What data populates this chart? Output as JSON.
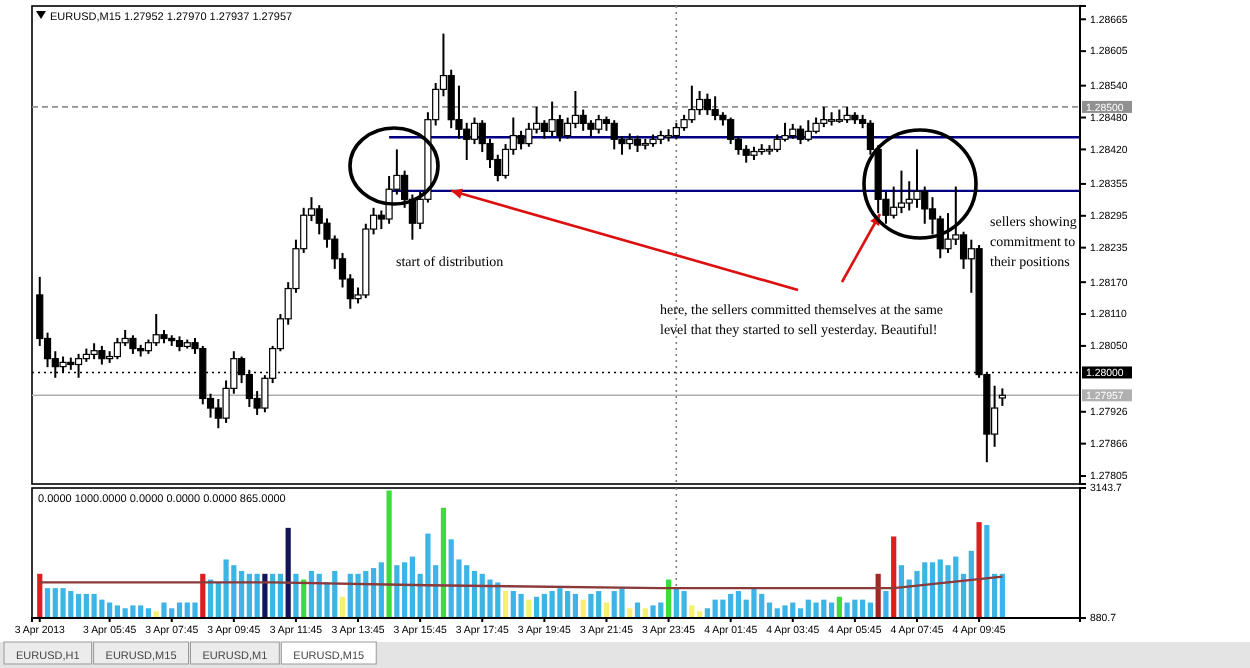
{
  "chart_data": [
    {
      "type": "candlestick",
      "title": "EURUSD,M15 1.27952 1.27970 1.27937 1.27957",
      "color": "#000000",
      "x": [
        "2013-04-03T03:30",
        "2013-04-03T03:45",
        "2013-04-03T04:00",
        "2013-04-03T04:15",
        "2013-04-03T04:30",
        "2013-04-03T04:45",
        "2013-04-03T05:00",
        "2013-04-03T05:15",
        "2013-04-03T05:30",
        "2013-04-03T05:45",
        "2013-04-03T06:00",
        "2013-04-03T06:15",
        "2013-04-03T06:30",
        "2013-04-03T06:45",
        "2013-04-03T07:00",
        "2013-04-03T07:15",
        "2013-04-03T07:30",
        "2013-04-03T07:45",
        "2013-04-03T08:00",
        "2013-04-03T08:15",
        "2013-04-03T08:30",
        "2013-04-03T08:45",
        "2013-04-03T09:00",
        "2013-04-03T09:15",
        "2013-04-03T09:30",
        "2013-04-03T09:45",
        "2013-04-03T10:00",
        "2013-04-03T10:15",
        "2013-04-03T10:30",
        "2013-04-03T10:45",
        "2013-04-03T11:00",
        "2013-04-03T11:15",
        "2013-04-03T11:30",
        "2013-04-03T11:45",
        "2013-04-03T12:00",
        "2013-04-03T12:15",
        "2013-04-03T12:30",
        "2013-04-03T12:45",
        "2013-04-03T13:00",
        "2013-04-03T13:15",
        "2013-04-03T13:30",
        "2013-04-03T13:45",
        "2013-04-03T14:00",
        "2013-04-03T14:15",
        "2013-04-03T14:30",
        "2013-04-03T14:45",
        "2013-04-03T15:00",
        "2013-04-03T15:15",
        "2013-04-03T15:30",
        "2013-04-03T15:45",
        "2013-04-03T16:00",
        "2013-04-03T16:15",
        "2013-04-03T16:30",
        "2013-04-03T16:45",
        "2013-04-03T17:00",
        "2013-04-03T17:15",
        "2013-04-03T17:30",
        "2013-04-03T17:45",
        "2013-04-03T18:00",
        "2013-04-03T18:15",
        "2013-04-03T18:30",
        "2013-04-03T18:45",
        "2013-04-03T19:00",
        "2013-04-03T19:15",
        "2013-04-03T19:30",
        "2013-04-03T19:45",
        "2013-04-03T20:00",
        "2013-04-03T20:15",
        "2013-04-03T20:30",
        "2013-04-03T20:45",
        "2013-04-03T21:00",
        "2013-04-03T21:15",
        "2013-04-03T21:30",
        "2013-04-03T21:45",
        "2013-04-03T22:00",
        "2013-04-03T22:15",
        "2013-04-03T22:30",
        "2013-04-03T22:45",
        "2013-04-03T23:00",
        "2013-04-03T23:15",
        "2013-04-03T23:30",
        "2013-04-03T23:45",
        "2013-04-04T00:00",
        "2013-04-04T00:15",
        "2013-04-04T00:30",
        "2013-04-04T00:45",
        "2013-04-04T01:00",
        "2013-04-04T01:15",
        "2013-04-04T01:30",
        "2013-04-04T01:45",
        "2013-04-04T02:00",
        "2013-04-04T02:15",
        "2013-04-04T02:30",
        "2013-04-04T02:45",
        "2013-04-04T03:00",
        "2013-04-04T03:15",
        "2013-04-04T03:30",
        "2013-04-04T03:45",
        "2013-04-04T04:00",
        "2013-04-04T04:15",
        "2013-04-04T04:30",
        "2013-04-04T04:45",
        "2013-04-04T05:00",
        "2013-04-04T05:15",
        "2013-04-04T05:30",
        "2013-04-04T05:45",
        "2013-04-04T06:00",
        "2013-04-04T06:15",
        "2013-04-04T06:30",
        "2013-04-04T06:45",
        "2013-04-04T07:00",
        "2013-04-04T07:15",
        "2013-04-04T07:30",
        "2013-04-04T07:45",
        "2013-04-04T08:00",
        "2013-04-04T08:15",
        "2013-04-04T08:30",
        "2013-04-04T08:45",
        "2013-04-04T09:00",
        "2013-04-04T09:15",
        "2013-04-04T09:30",
        "2013-04-04T09:45",
        "2013-04-04T10:00",
        "2013-04-04T10:15",
        "2013-04-04T10:30"
      ],
      "ohlc": [
        [
          1.28146,
          1.2818,
          1.2805,
          1.28064
        ],
        [
          1.28064,
          1.28075,
          1.2801,
          1.28026
        ],
        [
          1.28026,
          1.2804,
          1.2799,
          1.28011
        ],
        [
          1.28011,
          1.2803,
          1.28,
          1.28019
        ],
        [
          1.28019,
          1.28028,
          1.28005,
          1.28015
        ],
        [
          1.28015,
          1.28035,
          1.2799,
          1.28026
        ],
        [
          1.28026,
          1.28045,
          1.2802,
          1.28034
        ],
        [
          1.28034,
          1.28055,
          1.28025,
          1.28041
        ],
        [
          1.28041,
          1.2805,
          1.28015,
          1.28026
        ],
        [
          1.28026,
          1.2804,
          1.28018,
          1.2803
        ],
        [
          1.2803,
          1.28065,
          1.28025,
          1.28056
        ],
        [
          1.28056,
          1.2808,
          1.2805,
          1.28064
        ],
        [
          1.28064,
          1.2807,
          1.28035,
          1.28045
        ],
        [
          1.28045,
          1.28052,
          1.2803,
          1.28041
        ],
        [
          1.28041,
          1.28062,
          1.28035,
          1.28056
        ],
        [
          1.28056,
          1.2811,
          1.2805,
          1.28071
        ],
        [
          1.28071,
          1.2808,
          1.28055,
          1.28064
        ],
        [
          1.28064,
          1.2807,
          1.2805,
          1.2806
        ],
        [
          1.2806,
          1.28068,
          1.2804,
          1.28049
        ],
        [
          1.28049,
          1.28062,
          1.28045,
          1.28056
        ],
        [
          1.28056,
          1.28065,
          1.28035,
          1.28045
        ],
        [
          1.28045,
          1.2805,
          1.2794,
          1.27951
        ],
        [
          1.27951,
          1.2796,
          1.27915,
          1.27933
        ],
        [
          1.27933,
          1.2795,
          1.27895,
          1.27914
        ],
        [
          1.27914,
          1.27985,
          1.27905,
          1.2797
        ],
        [
          1.2797,
          1.2804,
          1.2796,
          1.28026
        ],
        [
          1.28026,
          1.2803,
          1.2798,
          1.27996
        ],
        [
          1.27996,
          1.28005,
          1.27935,
          1.27951
        ],
        [
          1.27951,
          1.27965,
          1.2792,
          1.27933
        ],
        [
          1.27933,
          1.27995,
          1.27925,
          1.27989
        ],
        [
          1.27989,
          1.2805,
          1.2798,
          1.28045
        ],
        [
          1.28045,
          1.2811,
          1.2804,
          1.28101
        ],
        [
          1.28101,
          1.2817,
          1.2809,
          1.28158
        ],
        [
          1.28158,
          1.2825,
          1.2815,
          1.28233
        ],
        [
          1.28233,
          1.2831,
          1.28225,
          1.28296
        ],
        [
          1.28296,
          1.2833,
          1.28285,
          1.28308
        ],
        [
          1.28308,
          1.28315,
          1.2826,
          1.28281
        ],
        [
          1.28281,
          1.2829,
          1.28235,
          1.28251
        ],
        [
          1.28251,
          1.28258,
          1.28195,
          1.28214
        ],
        [
          1.28214,
          1.28225,
          1.2816,
          1.28176
        ],
        [
          1.28176,
          1.28185,
          1.2812,
          1.28139
        ],
        [
          1.28139,
          1.2816,
          1.2813,
          1.28146
        ],
        [
          1.28146,
          1.2828,
          1.2814,
          1.2827
        ],
        [
          1.2827,
          1.2831,
          1.2826,
          1.28296
        ],
        [
          1.28296,
          1.28305,
          1.2827,
          1.28289
        ],
        [
          1.28289,
          1.2837,
          1.2828,
          1.28345
        ],
        [
          1.28345,
          1.2842,
          1.28335,
          1.28371
        ],
        [
          1.28371,
          1.2838,
          1.2831,
          1.28326
        ],
        [
          1.28326,
          1.28335,
          1.2825,
          1.28281
        ],
        [
          1.28281,
          1.2834,
          1.2827,
          1.28326
        ],
        [
          1.28326,
          1.2849,
          1.2832,
          1.28476
        ],
        [
          1.28476,
          1.28545,
          1.28465,
          1.28533
        ],
        [
          1.28533,
          1.28638,
          1.2852,
          1.28559
        ],
        [
          1.28559,
          1.2857,
          1.2846,
          1.28476
        ],
        [
          1.28476,
          1.2854,
          1.2844,
          1.28458
        ],
        [
          1.28458,
          1.2847,
          1.284,
          1.28439
        ],
        [
          1.28439,
          1.2848,
          1.2843,
          1.28469
        ],
        [
          1.28469,
          1.28475,
          1.28415,
          1.28431
        ],
        [
          1.28431,
          1.2844,
          1.28385,
          1.28401
        ],
        [
          1.28401,
          1.2841,
          1.2836,
          1.28371
        ],
        [
          1.28371,
          1.2843,
          1.28365,
          1.2842
        ],
        [
          1.2842,
          1.2848,
          1.2841,
          1.28446
        ],
        [
          1.28446,
          1.28455,
          1.2842,
          1.28431
        ],
        [
          1.28431,
          1.2847,
          1.28425,
          1.28458
        ],
        [
          1.28458,
          1.285,
          1.2845,
          1.28469
        ],
        [
          1.28469,
          1.28475,
          1.2844,
          1.28454
        ],
        [
          1.28454,
          1.2851,
          1.28445,
          1.28476
        ],
        [
          1.28476,
          1.28485,
          1.28435,
          1.28446
        ],
        [
          1.28446,
          1.2848,
          1.2844,
          1.28469
        ],
        [
          1.28469,
          1.2853,
          1.2846,
          1.28484
        ],
        [
          1.28484,
          1.28495,
          1.28455,
          1.28469
        ],
        [
          1.28469,
          1.28475,
          1.28445,
          1.28458
        ],
        [
          1.28458,
          1.28485,
          1.2845,
          1.28476
        ],
        [
          1.28476,
          1.28482,
          1.28455,
          1.28469
        ],
        [
          1.28469,
          1.28475,
          1.2842,
          1.28439
        ],
        [
          1.28439,
          1.28445,
          1.2841,
          1.28431
        ],
        [
          1.28431,
          1.2845,
          1.2842,
          1.28439
        ],
        [
          1.28439,
          1.28446,
          1.28415,
          1.28428
        ],
        [
          1.28428,
          1.2844,
          1.2842,
          1.28431
        ],
        [
          1.28431,
          1.28448,
          1.28425,
          1.28439
        ],
        [
          1.28439,
          1.28455,
          1.2843,
          1.28446
        ],
        [
          1.28446,
          1.28458,
          1.28435,
          1.28446
        ],
        [
          1.28446,
          1.2847,
          1.2844,
          1.28461
        ],
        [
          1.28461,
          1.28485,
          1.28455,
          1.28476
        ],
        [
          1.28476,
          1.2854,
          1.2847,
          1.28495
        ],
        [
          1.28495,
          1.2853,
          1.28485,
          1.28514
        ],
        [
          1.28514,
          1.28525,
          1.28485,
          1.28495
        ],
        [
          1.28495,
          1.2852,
          1.28475,
          1.28484
        ],
        [
          1.28484,
          1.2849,
          1.28465,
          1.28476
        ],
        [
          1.28476,
          1.2848,
          1.2843,
          1.28439
        ],
        [
          1.28439,
          1.28445,
          1.2841,
          1.2842
        ],
        [
          1.2842,
          1.28428,
          1.28395,
          1.28409
        ],
        [
          1.28409,
          1.28425,
          1.284,
          1.28416
        ],
        [
          1.28416,
          1.2843,
          1.2841,
          1.2842
        ],
        [
          1.2842,
          1.28428,
          1.2841,
          1.2842
        ],
        [
          1.2842,
          1.28448,
          1.28415,
          1.28439
        ],
        [
          1.28439,
          1.2847,
          1.28435,
          1.28446
        ],
        [
          1.28446,
          1.28468,
          1.2844,
          1.28458
        ],
        [
          1.28458,
          1.28465,
          1.2843,
          1.28439
        ],
        [
          1.28439,
          1.28475,
          1.28435,
          1.28454
        ],
        [
          1.28454,
          1.2848,
          1.2845,
          1.28469
        ],
        [
          1.28469,
          1.285,
          1.28462,
          1.28476
        ],
        [
          1.28476,
          1.2849,
          1.28465,
          1.28476
        ],
        [
          1.28476,
          1.28495,
          1.2847,
          1.28476
        ],
        [
          1.28476,
          1.285,
          1.2847,
          1.28484
        ],
        [
          1.28484,
          1.2849,
          1.28468,
          1.28476
        ],
        [
          1.28476,
          1.28485,
          1.2846,
          1.28469
        ],
        [
          1.28469,
          1.28475,
          1.2841,
          1.2842
        ],
        [
          1.2842,
          1.28428,
          1.283,
          1.28326
        ],
        [
          1.28326,
          1.2834,
          1.2828,
          1.28296
        ],
        [
          1.28296,
          1.2835,
          1.2829,
          1.28311
        ],
        [
          1.28311,
          1.2838,
          1.283,
          1.28319
        ],
        [
          1.28319,
          1.2836,
          1.28305,
          1.28326
        ],
        [
          1.28326,
          1.2842,
          1.2831,
          1.28341
        ],
        [
          1.28341,
          1.2835,
          1.2828,
          1.28308
        ],
        [
          1.28308,
          1.2833,
          1.2826,
          1.28289
        ],
        [
          1.28289,
          1.28295,
          1.28215,
          1.28233
        ],
        [
          1.28233,
          1.283,
          1.28225,
          1.28251
        ],
        [
          1.28251,
          1.2835,
          1.2824,
          1.28259
        ],
        [
          1.28259,
          1.28265,
          1.28195,
          1.28214
        ],
        [
          1.28214,
          1.2825,
          1.2815,
          1.28233
        ],
        [
          1.28233,
          1.2824,
          1.2799,
          1.27996
        ],
        [
          1.27996,
          1.28,
          1.27831,
          1.27884
        ],
        [
          1.27884,
          1.27975,
          1.2786,
          1.27933
        ],
        [
          1.27952,
          1.2797,
          1.27937,
          1.27957
        ]
      ],
      "series": [
        {
          "type": "line",
          "x": [
            "2013-04-03T14:45",
            "2013-04-04T13:00"
          ],
          "values": [
            1.28443,
            1.28443
          ],
          "color": "#000080"
        },
        {
          "type": "line",
          "x": [
            "2013-04-03T14:45",
            "2013-04-04T13:00"
          ],
          "values": [
            1.28342,
            1.28342
          ],
          "color": "#000080"
        }
      ],
      "xlim": [
        "2013-04-03T03:15",
        "2013-04-04T13:00"
      ],
      "ylim": [
        1.2779,
        1.2869
      ],
      "yticks": [
        1.28665,
        1.28605,
        {
          "value": 1.2854,
          "label": "1.28540"
        },
        {
          "value": 1.2848,
          "label": "1.28480"
        },
        {
          "value": 1.2842,
          "label": "1.28420"
        },
        1.28355,
        1.28295,
        1.28235,
        {
          "value": 1.2817,
          "label": "1.28170"
        },
        {
          "value": 1.2811,
          "label": "1.28110"
        },
        {
          "value": 1.2805,
          "label": "1.28050"
        },
        1.27926,
        1.27866,
        1.27805
      ],
      "tick_labels": "y",
      "ref_lines": [
        {
          "axis": "y",
          "value": 1.285,
          "label": "1.28500",
          "color": "#909090",
          "line_style": "dashed"
        },
        {
          "axis": "y",
          "value": 1.28,
          "label": "1.28000",
          "color": "#000000",
          "line_style": "dotted"
        },
        {
          "axis": "y",
          "value": 1.27957,
          "label": "1.27957",
          "color": "#b0b0b0",
          "line_style": "solid"
        },
        {
          "axis": "x",
          "value": "2013-04-04T00:00",
          "color": "#808080",
          "line_style": "dotted"
        }
      ],
      "annotations": [
        "start of distribution",
        {
          "text": "here, the sellers committed themselves at the same level that they started to sell yesterday. Beautiful!",
          "x": "2013-04-03T16:45",
          "y": 1.28342
        },
        "sellers showing commitment to their positions"
      ]
    },
    {
      "type": "bar",
      "title": "0.0000 1000.0000 0.0000 0.0000 0.0000 865.0000",
      "x": [
        "2013-04-03T03:30",
        "2013-04-03T03:45",
        "2013-04-03T04:00",
        "2013-04-03T04:15",
        "2013-04-03T04:30",
        "2013-04-03T04:45",
        "2013-04-03T05:00",
        "2013-04-03T05:15",
        "2013-04-03T05:30",
        "2013-04-03T05:45",
        "2013-04-03T06:00",
        "2013-04-03T06:15",
        "2013-04-03T06:30",
        "2013-04-03T06:45",
        "2013-04-03T07:00",
        "2013-04-03T07:15",
        "2013-04-03T07:30",
        "2013-04-03T07:45",
        "2013-04-03T08:00",
        "2013-04-03T08:15",
        "2013-04-03T08:30",
        "2013-04-03T08:45",
        "2013-04-03T09:00",
        "2013-04-03T09:15",
        "2013-04-03T09:30",
        "2013-04-03T09:45",
        "2013-04-03T10:00",
        "2013-04-03T10:15",
        "2013-04-03T10:30",
        "2013-04-03T10:45",
        "2013-04-03T11:00",
        "2013-04-03T11:15",
        "2013-04-03T11:30",
        "2013-04-03T11:45",
        "2013-04-03T12:00",
        "2013-04-03T12:15",
        "2013-04-03T12:30",
        "2013-04-03T12:45",
        "2013-04-03T13:00",
        "2013-04-03T13:15",
        "2013-04-03T13:30",
        "2013-04-03T13:45",
        "2013-04-03T14:00",
        "2013-04-03T14:15",
        "2013-04-03T14:30",
        "2013-04-03T14:45",
        "2013-04-03T15:00",
        "2013-04-03T15:15",
        "2013-04-03T15:30",
        "2013-04-03T15:45",
        "2013-04-03T16:00",
        "2013-04-03T16:15",
        "2013-04-03T16:30",
        "2013-04-03T16:45",
        "2013-04-03T17:00",
        "2013-04-03T17:15",
        "2013-04-03T17:30",
        "2013-04-03T17:45",
        "2013-04-03T18:00",
        "2013-04-03T18:15",
        "2013-04-03T18:30",
        "2013-04-03T18:45",
        "2013-04-03T19:00",
        "2013-04-03T19:15",
        "2013-04-03T19:30",
        "2013-04-03T19:45",
        "2013-04-03T20:00",
        "2013-04-03T20:15",
        "2013-04-03T20:30",
        "2013-04-03T20:45",
        "2013-04-03T21:00",
        "2013-04-03T21:15",
        "2013-04-03T21:30",
        "2013-04-03T21:45",
        "2013-04-03T22:00",
        "2013-04-03T22:15",
        "2013-04-03T22:30",
        "2013-04-03T22:45",
        "2013-04-03T23:00",
        "2013-04-03T23:15",
        "2013-04-03T23:30",
        "2013-04-03T23:45",
        "2013-04-04T00:00",
        "2013-04-04T00:15",
        "2013-04-04T00:30",
        "2013-04-04T00:45",
        "2013-04-04T01:00",
        "2013-04-04T01:15",
        "2013-04-04T01:30",
        "2013-04-04T01:45",
        "2013-04-04T02:00",
        "2013-04-04T02:15",
        "2013-04-04T02:30",
        "2013-04-04T02:45",
        "2013-04-04T03:00",
        "2013-04-04T03:15",
        "2013-04-04T03:30",
        "2013-04-04T03:45",
        "2013-04-04T04:00",
        "2013-04-04T04:15",
        "2013-04-04T04:30",
        "2013-04-04T04:45",
        "2013-04-04T05:00",
        "2013-04-04T05:15",
        "2013-04-04T05:30",
        "2013-04-04T05:45",
        "2013-04-04T06:00",
        "2013-04-04T06:15",
        "2013-04-04T06:30",
        "2013-04-04T06:45",
        "2013-04-04T07:00",
        "2013-04-04T07:15",
        "2013-04-04T07:30",
        "2013-04-04T07:45",
        "2013-04-04T08:00",
        "2013-04-04T08:15",
        "2013-04-04T08:30",
        "2013-04-04T08:45",
        "2013-04-04T09:00",
        "2013-04-04T09:15",
        "2013-04-04T09:30",
        "2013-04-04T09:45",
        "2013-04-04T10:00",
        "2013-04-04T10:15",
        "2013-04-04T10:30"
      ],
      "series": [
        {
          "type": "bar",
          "values": [
            1650,
            1400,
            1400,
            1400,
            1350,
            1300,
            1300,
            1300,
            1200,
            1150,
            1100,
            1050,
            1100,
            1100,
            1050,
            1000,
            1150,
            1050,
            1150,
            1150,
            1150,
            1650,
            1550,
            1500,
            1900,
            1800,
            1700,
            1650,
            1650,
            1650,
            1650,
            1650,
            2450,
            1650,
            1550,
            1700,
            1650,
            1500,
            1700,
            1250,
            1650,
            1650,
            1700,
            1750,
            1850,
            3100,
            1800,
            1850,
            1950,
            1650,
            2350,
            1800,
            2800,
            2250,
            1900,
            1800,
            1700,
            1650,
            1550,
            1500,
            1350,
            1350,
            1300,
            1200,
            1250,
            1300,
            1350,
            1400,
            1350,
            1300,
            1200,
            1300,
            1350,
            1150,
            1350,
            1400,
            1050,
            1150,
            1050,
            1100,
            1150,
            1550,
            1400,
            1350,
            1100,
            1000,
            1050,
            1200,
            1200,
            1300,
            1350,
            1200,
            1400,
            1300,
            1150,
            1050,
            1100,
            1150,
            1050,
            1200,
            1150,
            1200,
            1150,
            1250,
            1150,
            1200,
            1200,
            1150,
            1650,
            1350,
            2300,
            1800,
            1550,
            1700,
            1850,
            1850,
            1900,
            1800,
            1950,
            1650,
            2050,
            2550,
            2500,
            1650,
            1650
          ],
          "colors": [
            "#dc1e1e",
            "#3cb4e6",
            "#3cb4e6",
            "#3cb4e6",
            "#3cb4e6",
            "#3cb4e6",
            "#3cb4e6",
            "#3cb4e6",
            "#3cb4e6",
            "#3cb4e6",
            "#3cb4e6",
            "#3cb4e6",
            "#3cb4e6",
            "#3cb4e6",
            "#3cb4e6",
            "#f5f06e",
            "#3cb4e6",
            "#3cb4e6",
            "#3cb4e6",
            "#3cb4e6",
            "#3cb4e6",
            "#dc1e1e",
            "#3cb4e6",
            "#3cb4e6",
            "#3cb4e6",
            "#3cb4e6",
            "#3cb4e6",
            "#3cb4e6",
            "#3cb4e6",
            "#14145a",
            "#3cb4e6",
            "#3cb4e6",
            "#14145a",
            "#3cb4e6",
            "#3cdc3c",
            "#3cb4e6",
            "#3cb4e6",
            "#3cb4e6",
            "#3cb4e6",
            "#f5f06e",
            "#3cb4e6",
            "#3cb4e6",
            "#3cb4e6",
            "#3cb4e6",
            "#3cb4e6",
            "#3cdc3c",
            "#3cb4e6",
            "#3cb4e6",
            "#3cb4e6",
            "#3cb4e6",
            "#3cb4e6",
            "#3cb4e6",
            "#3cdc3c",
            "#3cb4e6",
            "#3cb4e6",
            "#3cb4e6",
            "#3cb4e6",
            "#3cb4e6",
            "#3cb4e6",
            "#3cb4e6",
            "#f5f06e",
            "#3cb4e6",
            "#3cb4e6",
            "#f5f06e",
            "#3cb4e6",
            "#3cb4e6",
            "#3cb4e6",
            "#3cb4e6",
            "#3cb4e6",
            "#3cb4e6",
            "#f5f06e",
            "#3cb4e6",
            "#3cb4e6",
            "#f5f06e",
            "#3cb4e6",
            "#3cb4e6",
            "#f5f06e",
            "#3cb4e6",
            "#f5f06e",
            "#3cb4e6",
            "#3cb4e6",
            "#3cdc3c",
            "#3cb4e6",
            "#3cb4e6",
            "#f5f06e",
            "#f5f06e",
            "#3cb4e6",
            "#3cb4e6",
            "#3cb4e6",
            "#3cb4e6",
            "#3cb4e6",
            "#3cb4e6",
            "#3cb4e6",
            "#3cb4e6",
            "#3cb4e6",
            "#3cb4e6",
            "#3cb4e6",
            "#3cb4e6",
            "#3cb4e6",
            "#3cb4e6",
            "#3cb4e6",
            "#3cb4e6",
            "#3cb4e6",
            "#3cdc3c",
            "#3cb4e6",
            "#3cb4e6",
            "#3cb4e6",
            "#3cb4e6",
            "#a02828",
            "#3cb4e6",
            "#dc1e1e",
            "#3cb4e6",
            "#3cb4e6",
            "#3cb4e6",
            "#3cb4e6",
            "#3cb4e6",
            "#3cb4e6",
            "#3cb4e6",
            "#3cb4e6",
            "#3cb4e6",
            "#3cb4e6",
            "#dc1e1e",
            "#3cb4e6",
            "#3cb4e6",
            "#3cb4e6"
          ]
        },
        {
          "type": "line",
          "x": [
            "2013-04-03T03:30",
            "2013-04-03T11:00",
            "2013-04-03T16:00",
            "2013-04-03T23:30",
            "2013-04-04T05:00",
            "2013-04-04T07:00",
            "2013-04-04T08:45",
            "2013-04-04T10:30"
          ],
          "values": [
            1500,
            1500,
            1450,
            1400,
            1400,
            1400,
            1500,
            1600
          ],
          "color": "#8b3a3a"
        }
      ],
      "xlim": [
        "2013-04-03T03:15",
        "2013-04-04T13:00"
      ],
      "ylim": [
        880.7,
        3143.7
      ],
      "yticks": [
        880.7,
        3143.7
      ],
      "xticks": [
        {
          "value": "2013-04-03T03:30",
          "label": "3 Apr 2013"
        },
        {
          "value": "2013-04-03T05:45",
          "label": "3 Apr 05:45"
        },
        {
          "value": "2013-04-03T07:45",
          "label": "3 Apr 07:45"
        },
        {
          "value": "2013-04-03T09:45",
          "label": "3 Apr 09:45"
        },
        {
          "value": "2013-04-03T11:45",
          "label": "3 Apr 11:45"
        },
        {
          "value": "2013-04-03T13:45",
          "label": "3 Apr 13:45"
        },
        {
          "value": "2013-04-03T15:45",
          "label": "3 Apr 15:45"
        },
        {
          "value": "2013-04-03T17:45",
          "label": "3 Apr 17:45"
        },
        {
          "value": "2013-04-03T19:45",
          "label": "3 Apr 19:45"
        },
        {
          "value": "2013-04-03T21:45",
          "label": "3 Apr 21:45"
        },
        {
          "value": "2013-04-03T23:45",
          "label": "3 Apr 23:45"
        },
        {
          "value": "2013-04-04T01:45",
          "label": "4 Apr 01:45"
        },
        {
          "value": "2013-04-04T03:45",
          "label": "4 Apr 03:45"
        },
        {
          "value": "2013-04-04T05:45",
          "label": "4 Apr 05:45"
        },
        {
          "value": "2013-04-04T07:45",
          "label": "4 Apr 07:45"
        },
        {
          "value": "2013-04-04T09:45",
          "label": "4 Apr 09:45"
        }
      ],
      "ref_lines": [
        {
          "axis": "x",
          "value": "2013-04-04T00:00",
          "color": "#808080",
          "line_style": "dotted"
        }
      ],
      "annotations": [
        "EURUSD,H1",
        "EURUSD,M15",
        "EURUSD,M1",
        "EURUSD,M15"
      ]
    }
  ]
}
